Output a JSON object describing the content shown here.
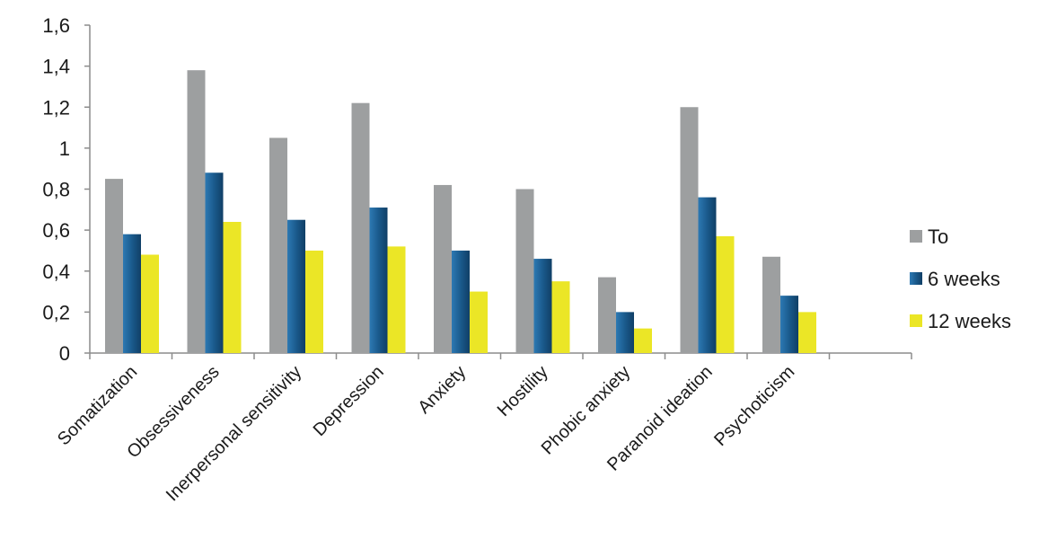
{
  "chart_data": {
    "type": "bar",
    "title": "",
    "xlabel": "",
    "ylabel": "",
    "ylim": [
      0,
      1.6
    ],
    "yticks": [
      "0",
      "0,2",
      "0,4",
      "0,6",
      "0,8",
      "1",
      "1,2",
      "1,4",
      "1,6"
    ],
    "categories": [
      "Somatization",
      "Obsessiveness",
      "Inerpersonal sensitivity",
      "Depression",
      "Anxiety",
      "Hostility",
      "Phobic anxiety",
      "Paranoid ideation",
      "Psychoticism"
    ],
    "series": [
      {
        "name": "To",
        "color": "#9d9fa0",
        "values": [
          0.85,
          1.38,
          1.05,
          1.22,
          0.82,
          0.8,
          0.37,
          1.2,
          0.47
        ]
      },
      {
        "name": "6 weeks",
        "color": "#1a5a8c",
        "values": [
          0.58,
          0.88,
          0.65,
          0.71,
          0.5,
          0.46,
          0.2,
          0.76,
          0.28
        ]
      },
      {
        "name": "12 weeks",
        "color": "#ebe626",
        "values": [
          0.48,
          0.64,
          0.5,
          0.52,
          0.3,
          0.35,
          0.12,
          0.57,
          0.2
        ]
      }
    ],
    "grid": false,
    "legend_position": "right"
  }
}
